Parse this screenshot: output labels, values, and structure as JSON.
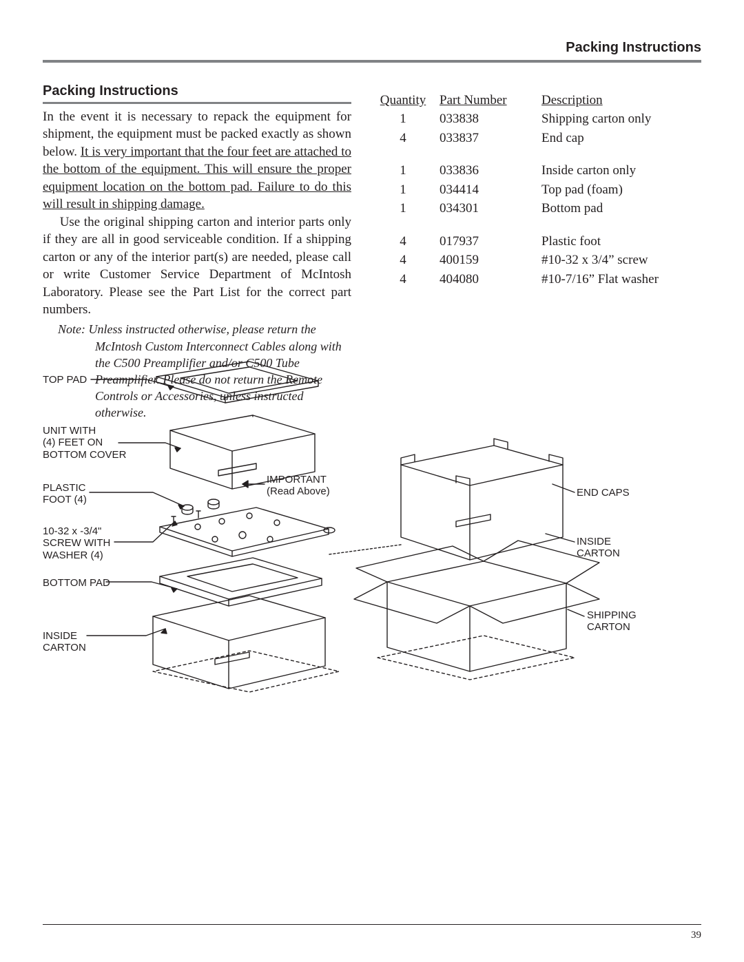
{
  "running_head": "Packing Instructions",
  "section_title": "Packing Instructions",
  "page_number": "39",
  "body": {
    "p1_a": "In the event it is necessary to repack the equipment for shipment, the equipment must be packed exactly as shown below. ",
    "p1_u": "It is very important that the four feet are attached to the bottom of the equipment. This will ensure the proper equipment location on the bottom pad. Failure to do this will result in shipping damage.",
    "p2": "Use the original shipping carton and interior parts only if they are all in good serviceable condition. If a shipping carton or any of the interior part(s) are needed, please call or write Customer Service Department of McIntosh Laboratory. Please see the Part List for the correct part numbers."
  },
  "note": {
    "lead": "Note: ",
    "text": "Unless instructed otherwise, please return the McIntosh Custom Interconnect Cables along with the C500 Preamplifier and/or C500 Tube Preamplifier. Please do not return the Remote Controls or Accessories, unless instructed otherwise."
  },
  "parts_table": {
    "headers": {
      "qty": "Quantity",
      "pn": "Part Number",
      "desc": "Description"
    },
    "groups": [
      [
        {
          "qty": "1",
          "pn": "033838",
          "desc": "Shipping carton only"
        },
        {
          "qty": "4",
          "pn": "033837",
          "desc": "End cap"
        }
      ],
      [
        {
          "qty": "1",
          "pn": "033836",
          "desc": "Inside carton only"
        },
        {
          "qty": "1",
          "pn": "034414",
          "desc": "Top pad (foam)"
        },
        {
          "qty": "1",
          "pn": "034301",
          "desc": "Bottom pad"
        }
      ],
      [
        {
          "qty": "4",
          "pn": "017937",
          "desc": "Plastic foot"
        },
        {
          "qty": "4",
          "pn": "400159",
          "desc": "#10-32 x 3/4” screw"
        },
        {
          "qty": "4",
          "pn": "404080",
          "desc": "#10-7/16” Flat washer"
        }
      ]
    ]
  },
  "diagram_labels": {
    "top_pad": "TOP PAD",
    "unit_feet": "UNIT WITH\n(4) FEET ON\nBOTTOM COVER",
    "plastic_foot": "PLASTIC\nFOOT (4)",
    "screw_washer": "10-32 x -3/4\"\nSCREW WITH\nWASHER (4)",
    "bottom_pad": "BOTTOM PAD",
    "inside_carton_left": "INSIDE\nCARTON",
    "important": "IMPORTANT\n(Read Above)",
    "end_caps": "END CAPS",
    "inside_carton_right": "INSIDE\nCARTON",
    "shipping_carton": "SHIPPING\nCARTON"
  },
  "style": {
    "rule_color": "#808285",
    "text_color": "#231f20",
    "stroke": "#231f20",
    "stroke_width": 1.4,
    "body_font_size": 19,
    "label_font_size": 15,
    "heading_font_size": 20
  }
}
